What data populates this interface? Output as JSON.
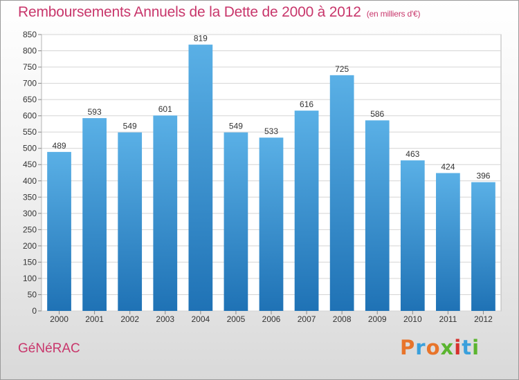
{
  "title": "Remboursements Annuels de la Dette de 2000 à 2012",
  "unit": "(en milliers d'€)",
  "commune": "GéNéRAC",
  "logo": {
    "text": "Proxiti",
    "letter_colors": [
      "#e8742a",
      "#3aa0dc",
      "#e8742a",
      "#5bb530",
      "#d6322e",
      "#3aa0dc",
      "#5bb530"
    ]
  },
  "colors": {
    "bar_top": "#5ab0e6",
    "bar_bottom": "#1f72b5",
    "title": "#c8366b",
    "grid": "#d4d4d4"
  },
  "chart_data": {
    "type": "bar",
    "title": "Remboursements Annuels de la Dette de 2000 à 2012",
    "categories": [
      "2000",
      "2001",
      "2002",
      "2003",
      "2004",
      "2005",
      "2006",
      "2007",
      "2008",
      "2009",
      "2010",
      "2011",
      "2012"
    ],
    "values": [
      489,
      593,
      549,
      601,
      819,
      549,
      533,
      616,
      725,
      586,
      463,
      424,
      396
    ],
    "yticks": [
      0,
      50,
      100,
      150,
      200,
      250,
      300,
      350,
      400,
      450,
      500,
      550,
      600,
      650,
      700,
      750,
      800,
      850
    ],
    "ylim": [
      0,
      850
    ],
    "grid": true,
    "xlabel": "",
    "ylabel": ""
  }
}
